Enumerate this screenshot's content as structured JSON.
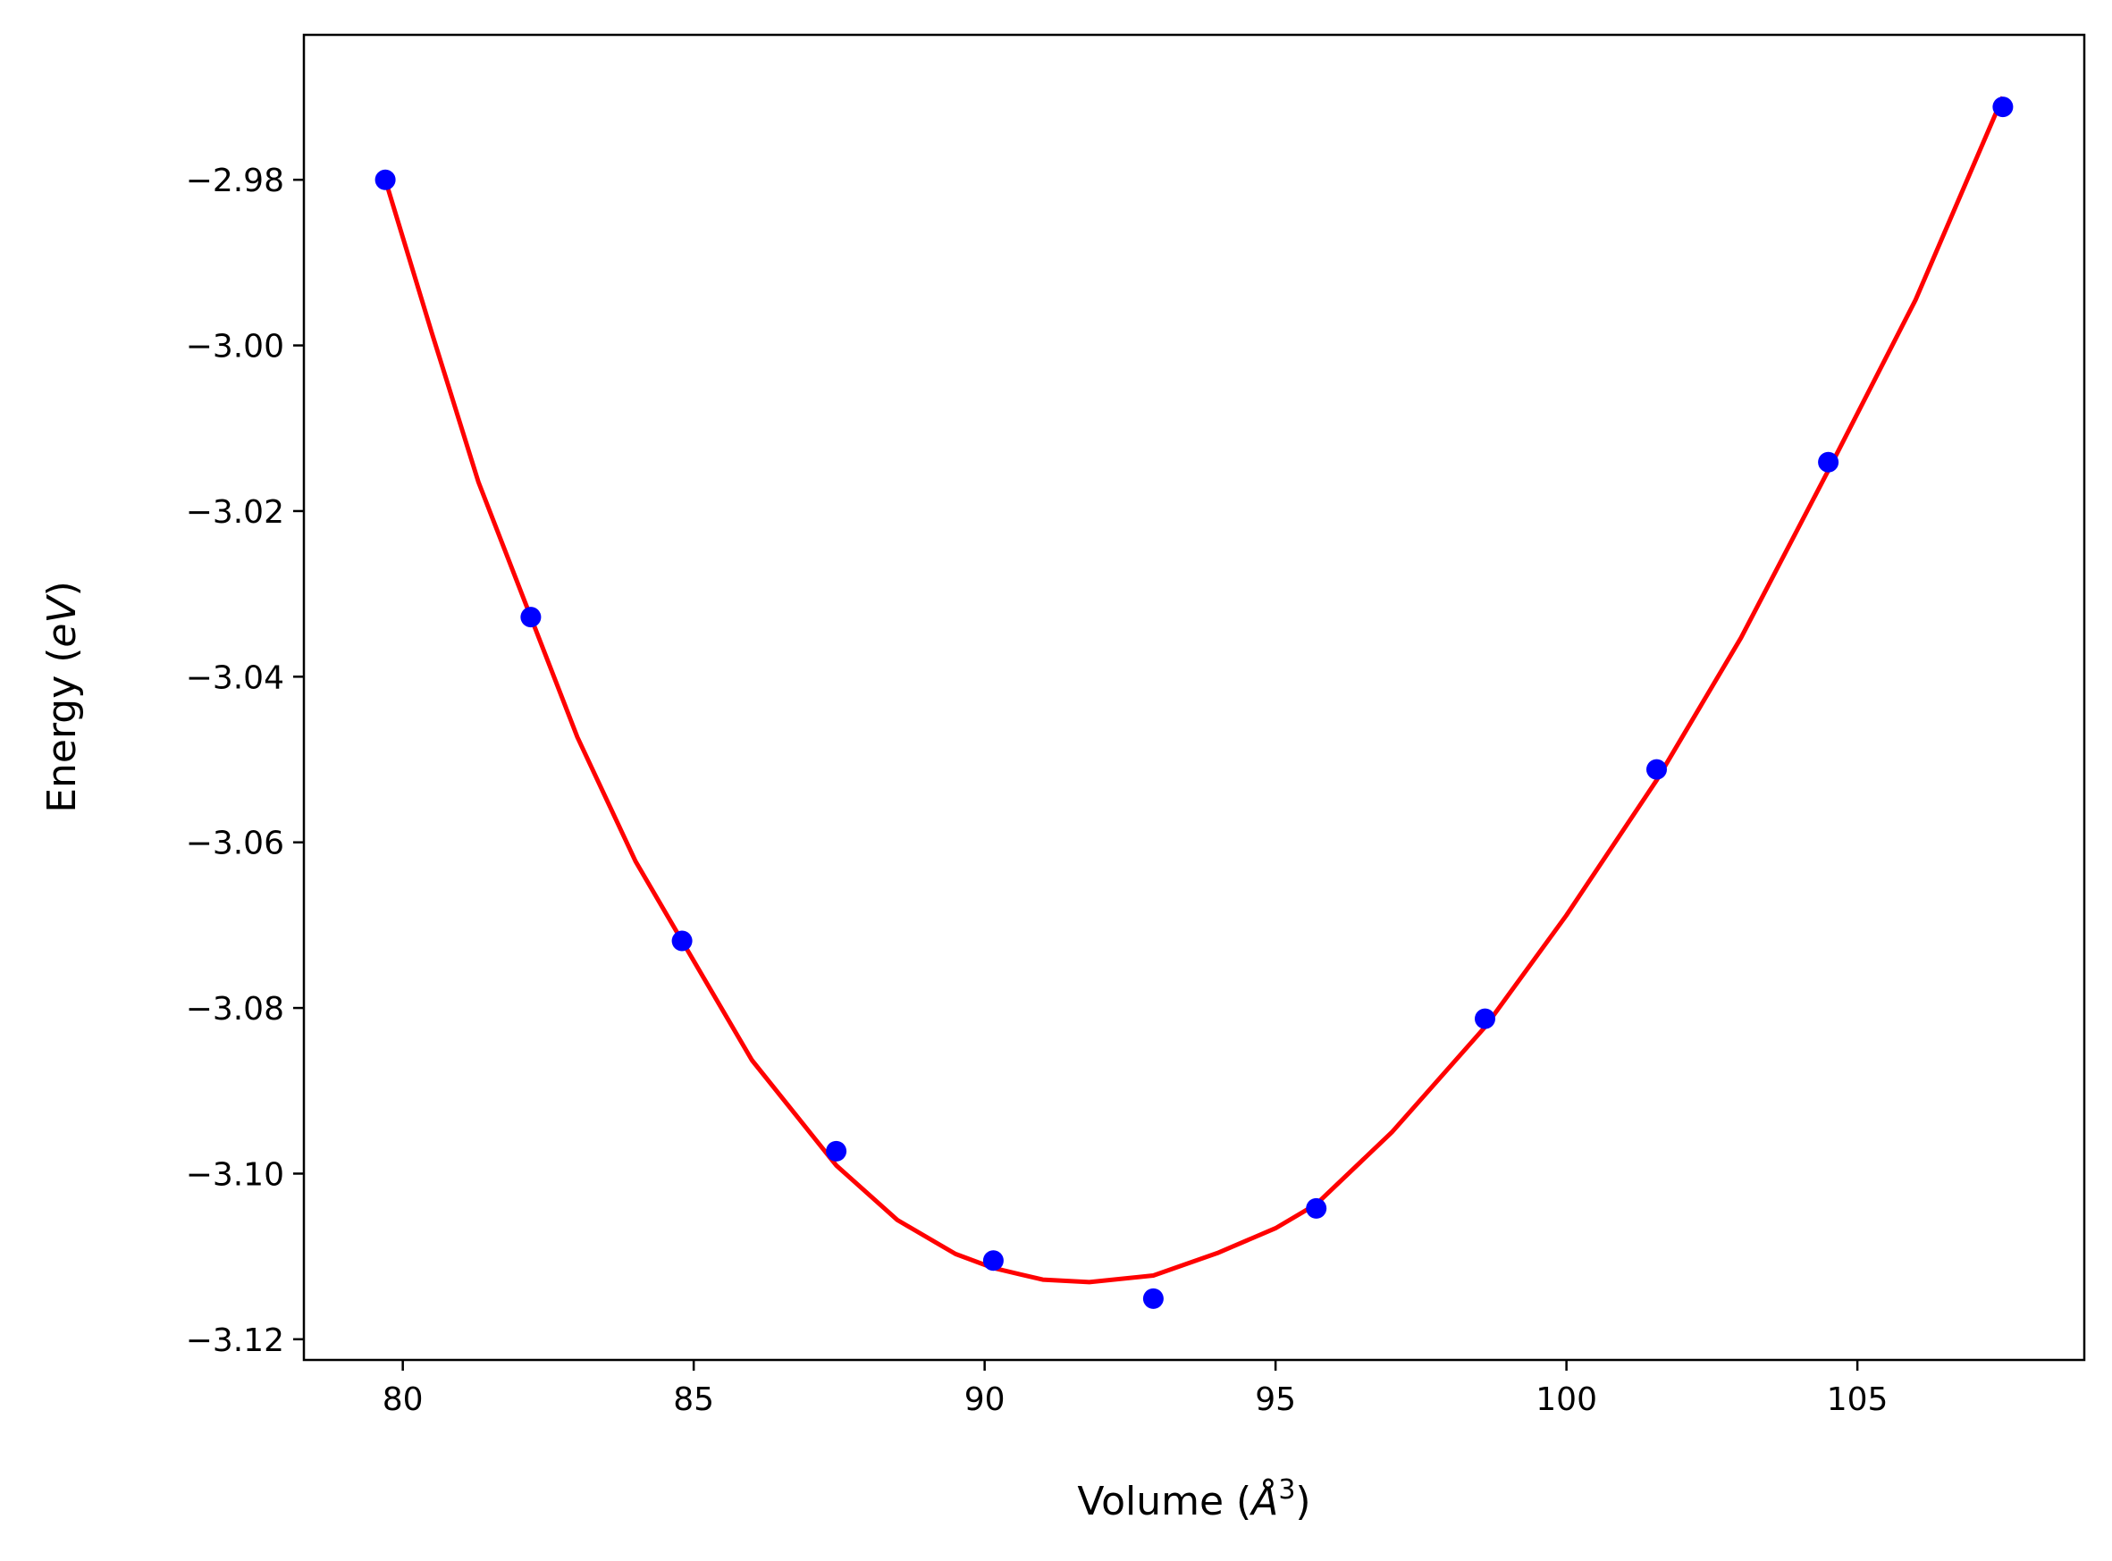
{
  "chart_data": {
    "type": "scatter",
    "xlabel_main": "Volume (",
    "xlabel_unit": "Å",
    "xlabel_exp": "3",
    "xlabel_close": ")",
    "ylabel_main": "Energy (",
    "ylabel_unit": "eV",
    "ylabel_close": ")",
    "xlim": [
      78.3,
      108.9
    ],
    "ylim": [
      -3.1225,
      -2.9625
    ],
    "xticks": [
      80,
      85,
      90,
      95,
      100,
      105
    ],
    "xtick_labels": [
      "80",
      "85",
      "90",
      "95",
      "100",
      "105"
    ],
    "yticks": [
      -2.98,
      -3.0,
      -3.02,
      -3.04,
      -3.06,
      -3.08,
      -3.1,
      -3.12
    ],
    "ytick_labels": [
      "−2.98",
      "−3.00",
      "−3.02",
      "−3.04",
      "−3.06",
      "−3.08",
      "−3.10",
      "−3.12"
    ],
    "grid": false,
    "series": [
      {
        "kind": "points",
        "color": "#0000ff",
        "x": [
          79.7,
          82.2,
          84.8,
          87.45,
          90.15,
          92.9,
          95.7,
          98.6,
          101.55,
          104.5,
          107.5
        ],
        "y": [
          -2.98,
          -3.0328,
          -3.0719,
          -3.0973,
          -3.1105,
          -3.1151,
          -3.1042,
          -3.0813,
          -3.0512,
          -3.0141,
          -2.9712
        ]
      },
      {
        "kind": "fit-curve",
        "color": "#ff0000",
        "x": [
          79.7,
          80.5,
          81.3,
          82.2,
          83.0,
          84.0,
          84.8,
          86.0,
          87.45,
          88.5,
          89.5,
          90.15,
          91.0,
          91.8,
          92.9,
          94.0,
          95.0,
          95.7,
          97.0,
          98.6,
          100.0,
          101.55,
          103.0,
          104.5,
          106.0,
          107.5
        ],
        "y": [
          -2.98,
          -2.9985,
          -3.0165,
          -3.0328,
          -3.0473,
          -3.0623,
          -3.0719,
          -3.0863,
          -3.099,
          -3.1056,
          -3.1097,
          -3.1114,
          -3.1128,
          -3.1131,
          -3.1123,
          -3.1096,
          -3.1066,
          -3.1037,
          -3.095,
          -3.0823,
          -3.0688,
          -3.0525,
          -3.0353,
          -3.0151,
          -2.9945,
          -2.97
        ]
      }
    ]
  }
}
